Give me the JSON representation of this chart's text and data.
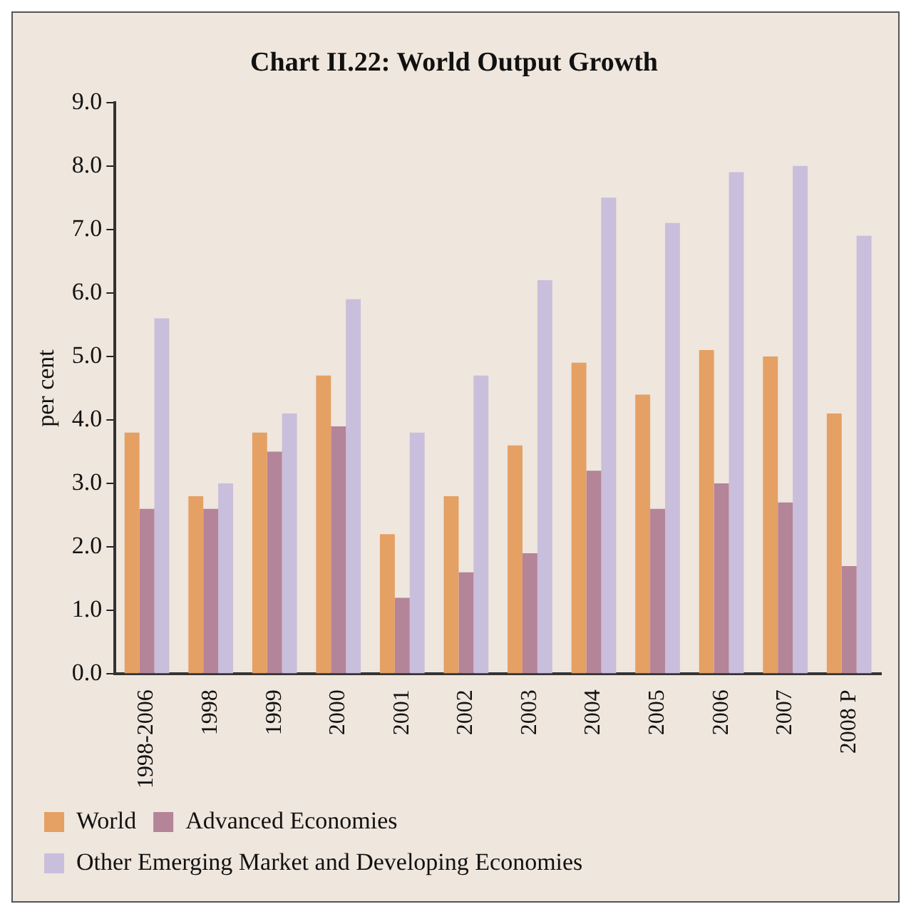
{
  "chart_data": {
    "type": "bar",
    "title": "Chart II.22: World Output Growth",
    "ylabel": "per cent",
    "categories": [
      "1998-2006",
      "1998",
      "1999",
      "2000",
      "2001",
      "2002",
      "2003",
      "2004",
      "2005",
      "2006",
      "2007",
      "2008 P"
    ],
    "series": [
      {
        "name": "World",
        "color": "#e5a064",
        "values": [
          3.8,
          2.8,
          3.8,
          4.7,
          2.2,
          2.8,
          3.6,
          4.9,
          4.4,
          5.1,
          5.0,
          4.1
        ]
      },
      {
        "name": "Advanced Economies",
        "color": "#b48499",
        "values": [
          2.6,
          2.6,
          3.5,
          3.9,
          1.2,
          1.6,
          1.9,
          3.2,
          2.6,
          3.0,
          2.7,
          1.7
        ]
      },
      {
        "name": "Other Emerging Market and Developing Economies",
        "color": "#c9bedb",
        "values": [
          5.6,
          3.0,
          4.1,
          5.9,
          3.8,
          4.7,
          6.2,
          7.5,
          7.1,
          7.9,
          8.0,
          6.9
        ]
      }
    ],
    "ylim": [
      0,
      9
    ],
    "yticks": [
      {
        "value": 0,
        "label": "0.0"
      },
      {
        "value": 1,
        "label": "1.0"
      },
      {
        "value": 2,
        "label": "2.0"
      },
      {
        "value": 3,
        "label": "3.0"
      },
      {
        "value": 4,
        "label": "4.0"
      },
      {
        "value": 5,
        "label": "5.0"
      },
      {
        "value": 6,
        "label": "6.0"
      },
      {
        "value": 7,
        "label": "7.0"
      },
      {
        "value": 8,
        "label": "8.0"
      },
      {
        "value": 9,
        "label": "9.0"
      }
    ],
    "grid": false,
    "legend": "bottom"
  }
}
